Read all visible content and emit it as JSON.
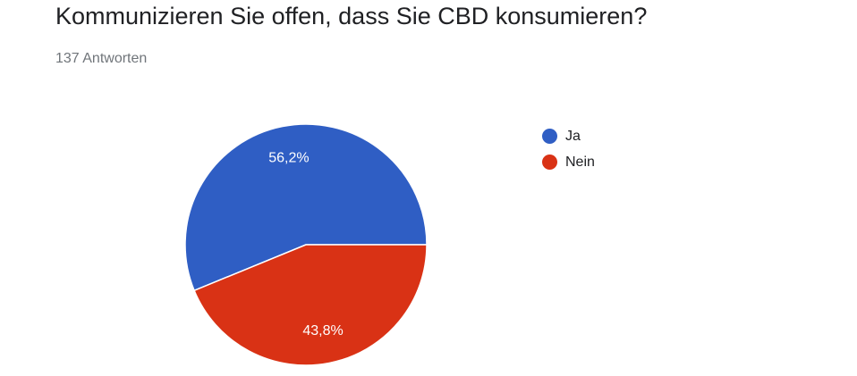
{
  "header": {
    "title": "Kommunizieren Sie offen, dass Sie CBD konsumieren?",
    "subtitle": "137 Antworten"
  },
  "chart_data": {
    "type": "pie",
    "title": "Kommunizieren Sie offen, dass Sie CBD konsumieren?",
    "categories": [
      "Ja",
      "Nein"
    ],
    "values": [
      56.2,
      43.8
    ],
    "value_labels": [
      "56,2%",
      "43,8%"
    ],
    "colors": [
      "#2f5ec4",
      "#d93215"
    ],
    "legend_position": "right"
  }
}
